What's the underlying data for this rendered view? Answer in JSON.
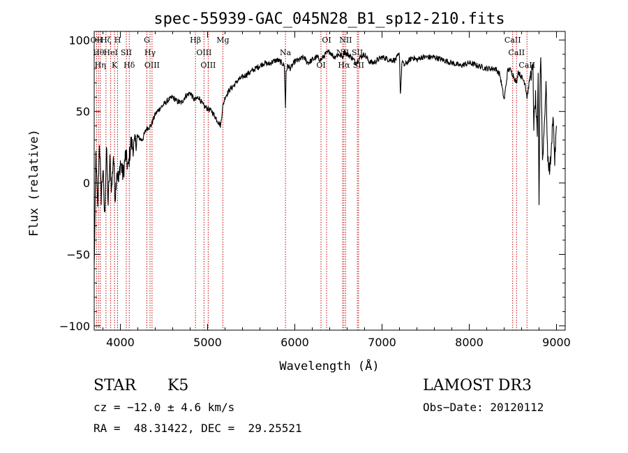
{
  "chart_data": {
    "type": "line",
    "title": "spec-55939-GAC_045N28_B1_sp12-210.fits",
    "xlabel": "Wavelength (Å)",
    "ylabel": "Flux (relative)",
    "xlim": [
      3700,
      9100
    ],
    "ylim": [
      -103,
      106
    ],
    "x_ticks": [
      4000,
      5000,
      6000,
      7000,
      8000,
      9000
    ],
    "y_ticks": [
      -100,
      -50,
      0,
      50,
      100
    ],
    "series": [
      {
        "name": "flux",
        "x": [
          3700,
          3720,
          3740,
          3760,
          3780,
          3800,
          3820,
          3840,
          3860,
          3880,
          3900,
          3920,
          3940,
          3960,
          3980,
          4000,
          4030,
          4060,
          4090,
          4120,
          4150,
          4200,
          4250,
          4300,
          4350,
          4400,
          4450,
          4500,
          4550,
          4600,
          4650,
          4700,
          4750,
          4800,
          4850,
          4900,
          4950,
          5000,
          5050,
          5100,
          5150,
          5170,
          5200,
          5250,
          5300,
          5350,
          5400,
          5450,
          5500,
          5550,
          5600,
          5650,
          5700,
          5750,
          5800,
          5850,
          5880,
          5893,
          5900,
          5920,
          5950,
          6000,
          6050,
          6100,
          6150,
          6200,
          6250,
          6300,
          6350,
          6400,
          6450,
          6500,
          6550,
          6563,
          6600,
          6650,
          6700,
          6750,
          6800,
          6850,
          6900,
          6950,
          7000,
          7050,
          7100,
          7150,
          7200,
          7210,
          7230,
          7250,
          7300,
          7350,
          7400,
          7450,
          7500,
          7600,
          7700,
          7800,
          7900,
          8000,
          8100,
          8200,
          8300,
          8350,
          8400,
          8440,
          8460,
          8500,
          8542,
          8560,
          8600,
          8640,
          8662,
          8700,
          8730,
          8740,
          8760,
          8780,
          8790,
          8800,
          8810,
          8820,
          8840,
          8860,
          8880,
          8900,
          8920,
          8940,
          8960,
          8980,
          9000
        ],
        "y": [
          -60,
          20,
          -20,
          30,
          -10,
          10,
          -25,
          25,
          -15,
          15,
          -5,
          20,
          -10,
          10,
          0,
          15,
          5,
          20,
          10,
          28,
          25,
          32,
          30,
          38,
          40,
          48,
          52,
          55,
          58,
          60,
          57,
          56,
          61,
          63,
          58,
          60,
          54,
          52,
          50,
          45,
          40,
          52,
          60,
          65,
          68,
          72,
          74,
          76,
          78,
          80,
          82,
          84,
          83,
          85,
          86,
          84,
          82,
          52,
          78,
          82,
          80,
          85,
          86,
          88,
          84,
          86,
          88,
          86,
          90,
          92,
          88,
          90,
          88,
          92,
          90,
          88,
          84,
          88,
          90,
          85,
          84,
          86,
          88,
          87,
          86,
          86,
          90,
          62,
          86,
          82,
          85,
          88,
          86,
          88,
          88,
          88,
          86,
          84,
          82,
          84,
          82,
          80,
          80,
          76,
          58,
          78,
          80,
          76,
          70,
          78,
          74,
          70,
          60,
          75,
          80,
          40,
          60,
          30,
          75,
          -20,
          70,
          90,
          15,
          40,
          70,
          15,
          10,
          20,
          50,
          15,
          40
        ],
        "color": "#000000"
      }
    ],
    "line_markers": [
      {
        "x": 3727,
        "label": "OII"
      },
      {
        "x": 3750,
        "label": "Hθ"
      },
      {
        "x": 3770,
        "label": "Hη"
      },
      {
        "x": 3835,
        "label": "Hζ"
      },
      {
        "x": 3889,
        "label": "HeI"
      },
      {
        "x": 3933,
        "label": "K"
      },
      {
        "x": 3968,
        "label": "H"
      },
      {
        "x": 4068,
        "label": "SII"
      },
      {
        "x": 4102,
        "label": "Hδ"
      },
      {
        "x": 4304,
        "label": "G"
      },
      {
        "x": 4340,
        "label": "Hγ"
      },
      {
        "x": 4363,
        "label": "OIII"
      },
      {
        "x": 4861,
        "label": "Hβ"
      },
      {
        "x": 4959,
        "label": "OIII"
      },
      {
        "x": 5007,
        "label": "OIII"
      },
      {
        "x": 5175,
        "label": "Mg"
      },
      {
        "x": 5893,
        "label": "Na"
      },
      {
        "x": 6300,
        "label": "OI"
      },
      {
        "x": 6364,
        "label": "OI"
      },
      {
        "x": 6548,
        "label": "NII"
      },
      {
        "x": 6563,
        "label": "Hα"
      },
      {
        "x": 6583,
        "label": "NII"
      },
      {
        "x": 6717,
        "label": "SII"
      },
      {
        "x": 6731,
        "label": "SII"
      },
      {
        "x": 8498,
        "label": "CaII"
      },
      {
        "x": 8542,
        "label": "CaII"
      },
      {
        "x": 8662,
        "label": "CaII"
      }
    ]
  },
  "info": {
    "class_label": "STAR",
    "subclass_label": "K5",
    "survey": "LAMOST DR3",
    "cz": "cz = −12.0 ± 4.6 km/s",
    "obs_date": "Obs−Date: 20120112",
    "coords": "RA =  48.31422, DEC =  29.25521"
  }
}
